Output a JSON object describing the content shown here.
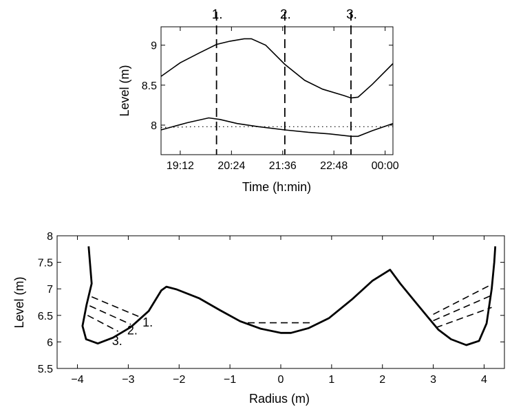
{
  "chart_data": [
    {
      "type": "line",
      "xlabel": "Time (h:min)",
      "ylabel": "Level (m)",
      "x_unit": "minutes after 19:12",
      "xlim": [
        -27,
        299
      ],
      "ylim": [
        7.63,
        9.23
      ],
      "x_ticks": [
        {
          "value": 0,
          "label": "19:12"
        },
        {
          "value": 72,
          "label": "20:24"
        },
        {
          "value": 144,
          "label": "21:36"
        },
        {
          "value": 216,
          "label": "22:48"
        },
        {
          "value": 288,
          "label": "00:00"
        }
      ],
      "y_ticks": [
        {
          "value": 8,
          "label": "8"
        },
        {
          "value": 8.5,
          "label": "8.5"
        },
        {
          "value": 9,
          "label": "9"
        }
      ],
      "vlines": [
        {
          "x": 51,
          "label": "1."
        },
        {
          "x": 147,
          "label": "2."
        },
        {
          "x": 240,
          "label": "3."
        }
      ],
      "series": [
        {
          "style": "solid",
          "points": [
            [
              -27,
              8.61
            ],
            [
              0,
              8.78
            ],
            [
              26,
              8.9
            ],
            [
              51,
              9.01
            ],
            [
              70,
              9.05
            ],
            [
              90,
              9.08
            ],
            [
              100,
              9.08
            ],
            [
              120,
              9.0
            ],
            [
              147,
              8.76
            ],
            [
              175,
              8.56
            ],
            [
              200,
              8.45
            ],
            [
              230,
              8.37
            ],
            [
              240,
              8.34
            ],
            [
              250,
              8.35
            ],
            [
              270,
              8.51
            ],
            [
              299,
              8.77
            ]
          ]
        },
        {
          "style": "solid",
          "points": [
            [
              -27,
              7.94
            ],
            [
              10,
              8.03
            ],
            [
              40,
              8.09
            ],
            [
              56,
              8.07
            ],
            [
              80,
              8.02
            ],
            [
              110,
              7.98
            ],
            [
              147,
              7.94
            ],
            [
              180,
              7.91
            ],
            [
              210,
              7.89
            ],
            [
              240,
              7.86
            ],
            [
              250,
              7.86
            ],
            [
              270,
              7.93
            ],
            [
              299,
              8.02
            ]
          ]
        },
        {
          "style": "dotted",
          "points": [
            [
              -27,
              7.97
            ],
            [
              20,
              7.98
            ],
            [
              60,
              7.98
            ],
            [
              100,
              7.98
            ],
            [
              200,
              7.98
            ],
            [
              299,
              7.98
            ]
          ]
        }
      ]
    },
    {
      "type": "line",
      "xlabel": "Radius (m)",
      "ylabel": "Level (m)",
      "xlim": [
        -4.4,
        4.4
      ],
      "ylim": [
        5.5,
        8
      ],
      "x_ticks": [
        {
          "value": -4,
          "label": "−4"
        },
        {
          "value": -3,
          "label": "−3"
        },
        {
          "value": -2,
          "label": "−2"
        },
        {
          "value": -1,
          "label": "−1"
        },
        {
          "value": 0,
          "label": "0"
        },
        {
          "value": 1,
          "label": "1"
        },
        {
          "value": 2,
          "label": "2"
        },
        {
          "value": 3,
          "label": "3"
        },
        {
          "value": 4,
          "label": "4"
        }
      ],
      "y_ticks": [
        {
          "value": 5.5,
          "label": "5.5"
        },
        {
          "value": 6,
          "label": "6"
        },
        {
          "value": 6.5,
          "label": "6.5"
        },
        {
          "value": 7,
          "label": "7"
        },
        {
          "value": 7.5,
          "label": "7.5"
        },
        {
          "value": 8,
          "label": "8"
        }
      ],
      "series": [
        {
          "style": "thick-solid",
          "points": [
            [
              -3.78,
              7.8
            ],
            [
              -3.75,
              7.45
            ],
            [
              -3.72,
              7.1
            ],
            [
              -3.82,
              6.7
            ],
            [
              -3.9,
              6.3
            ],
            [
              -3.83,
              6.05
            ],
            [
              -3.6,
              5.97
            ],
            [
              -3.3,
              6.08
            ],
            [
              -2.95,
              6.28
            ],
            [
              -2.6,
              6.58
            ],
            [
              -2.35,
              6.97
            ],
            [
              -2.25,
              7.04
            ],
            [
              -2.05,
              6.99
            ],
            [
              -1.6,
              6.82
            ],
            [
              -1.2,
              6.6
            ],
            [
              -0.8,
              6.39
            ],
            [
              -0.4,
              6.25
            ],
            [
              0.0,
              6.17
            ],
            [
              0.2,
              6.17
            ],
            [
              0.55,
              6.26
            ],
            [
              0.95,
              6.45
            ],
            [
              1.4,
              6.8
            ],
            [
              1.8,
              7.15
            ],
            [
              2.15,
              7.36
            ],
            [
              2.35,
              7.1
            ],
            [
              2.65,
              6.75
            ],
            [
              2.9,
              6.46
            ],
            [
              3.1,
              6.23
            ],
            [
              3.35,
              6.05
            ],
            [
              3.65,
              5.94
            ],
            [
              3.9,
              6.02
            ],
            [
              4.05,
              6.35
            ],
            [
              4.15,
              7.0
            ],
            [
              4.2,
              7.5
            ],
            [
              4.22,
              7.8
            ]
          ]
        }
      ],
      "dashed_lines": [
        {
          "label": "1.",
          "segments": [
            [
              [
                -3.72,
                6.85
              ],
              [
                -2.8,
                6.48
              ]
            ],
            [
              [
                -0.65,
                6.36
              ],
              [
                0.58,
                6.36
              ]
            ],
            [
              [
                3.0,
                6.52
              ],
              [
                4.1,
                7.06
              ]
            ]
          ]
        },
        {
          "label": "2.",
          "segments": [
            [
              [
                -3.76,
                6.68
              ],
              [
                -2.95,
                6.33
              ]
            ],
            [
              [
                3.0,
                6.4
              ],
              [
                4.13,
                6.87
              ]
            ]
          ]
        },
        {
          "label": "3.",
          "segments": [
            [
              [
                -3.8,
                6.5
              ],
              [
                -3.2,
                6.2
              ]
            ],
            [
              [
                3.05,
                6.27
              ],
              [
                4.15,
                6.65
              ]
            ]
          ]
        }
      ]
    }
  ]
}
